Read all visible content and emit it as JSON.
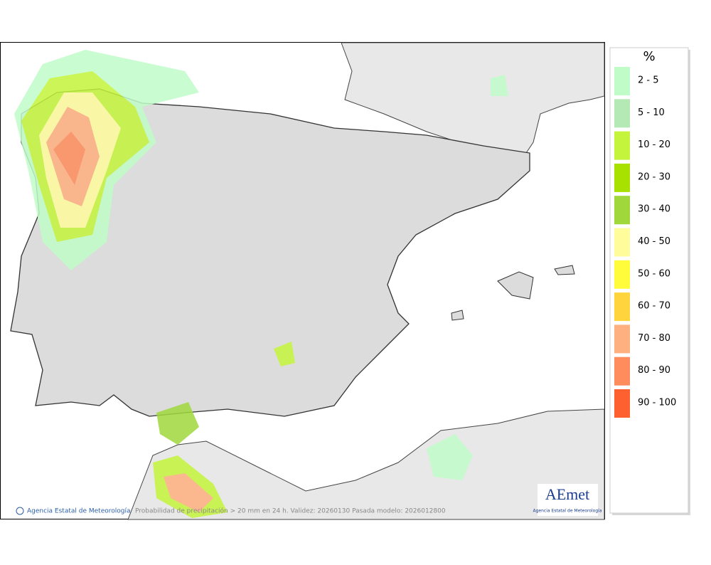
{
  "map": {
    "footer": {
      "agency": "Agencia Estatal de Meteorología",
      "caption": "Probabilidad de precipitación > 20 mm en 24 h. Validez: 20260130 Pasada modelo: 2026012800"
    },
    "logo": {
      "name": "AEmet",
      "subtitle": "Agencia Estatal de Meteorología"
    },
    "legend": {
      "title": "%",
      "items": [
        {
          "label": "2 - 5",
          "color": "#c0fcc8"
        },
        {
          "label": "5 - 10",
          "color": "#b4e8b4"
        },
        {
          "label": "10 - 20",
          "color": "#c4f43c"
        },
        {
          "label": "20 - 30",
          "color": "#a8e000"
        },
        {
          "label": "30 - 40",
          "color": "#a0d83c"
        },
        {
          "label": "40 - 50",
          "color": "#fffc9c"
        },
        {
          "label": "50 - 60",
          "color": "#fffc3c"
        },
        {
          "label": "60 - 70",
          "color": "#ffd43c"
        },
        {
          "label": "70 - 80",
          "color": "#ffb080"
        },
        {
          "label": "80 - 90",
          "color": "#ff8c5c"
        },
        {
          "label": "90 - 100",
          "color": "#ff6030"
        }
      ]
    }
  }
}
